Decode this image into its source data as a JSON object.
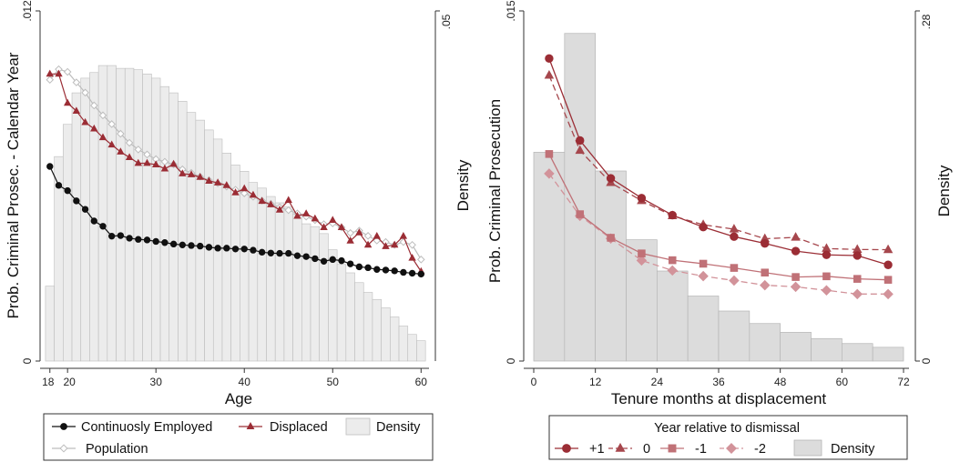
{
  "colors": {
    "black": "#111111",
    "displaced": "#9b2d35",
    "population": "#bdbdbd",
    "density_fill": "#ececec",
    "density_stroke": "#bdbdbd",
    "plus1": "#9b2d35",
    "zero": "#a6474d",
    "minus1": "#c07177",
    "minus2": "#d2939a",
    "density2_fill": "#dcdcdc",
    "density2_stroke": "#b5b5b5"
  },
  "chart_data": [
    {
      "type": "line",
      "xlabel": "Age",
      "ylabel": "Prob. Criminal Prosec. - Calendar Year",
      "y2label": "Density",
      "xlim": [
        17.2,
        61
      ],
      "ylim": [
        0,
        0.012
      ],
      "y2lim": [
        0,
        0.05
      ],
      "x_ticks": [
        "18",
        "20",
        "30",
        "40",
        "50",
        "60"
      ],
      "y_ticks": [
        "0",
        ".012"
      ],
      "y2_ticks": [
        ".05"
      ],
      "legend_position": "bottom",
      "x": [
        18,
        19,
        20,
        21,
        22,
        23,
        24,
        25,
        26,
        27,
        28,
        29,
        30,
        31,
        32,
        33,
        34,
        35,
        36,
        37,
        38,
        39,
        40,
        41,
        42,
        43,
        44,
        45,
        46,
        47,
        48,
        49,
        50,
        51,
        52,
        53,
        54,
        55,
        56,
        57,
        58,
        59,
        60
      ],
      "series": [
        {
          "name": "Continuosly Employed",
          "marker": "circle",
          "values": [
            0.00667,
            0.00602,
            0.00584,
            0.00549,
            0.0052,
            0.0048,
            0.00462,
            0.00428,
            0.0043,
            0.00421,
            0.00417,
            0.00415,
            0.0041,
            0.00406,
            0.00401,
            0.00398,
            0.00396,
            0.00394,
            0.0039,
            0.00387,
            0.00387,
            0.00384,
            0.00384,
            0.0038,
            0.00373,
            0.0037,
            0.00369,
            0.00369,
            0.00361,
            0.00358,
            0.00351,
            0.00342,
            0.00348,
            0.00344,
            0.00333,
            0.00323,
            0.0032,
            0.00314,
            0.00312,
            0.00309,
            0.00304,
            0.00301,
            0.00298
          ]
        },
        {
          "name": "Displaced",
          "marker": "triangle",
          "values": [
            0.00984,
            0.00984,
            0.00884,
            0.00857,
            0.00818,
            0.00796,
            0.00766,
            0.00741,
            0.00717,
            0.00698,
            0.00678,
            0.00678,
            0.00673,
            0.00659,
            0.00675,
            0.00642,
            0.00639,
            0.0063,
            0.00617,
            0.00611,
            0.00602,
            0.00577,
            0.00591,
            0.00569,
            0.00548,
            0.00536,
            0.00518,
            0.00551,
            0.00497,
            0.00505,
            0.00488,
            0.00458,
            0.00483,
            0.00458,
            0.00412,
            0.0044,
            0.00398,
            0.00428,
            0.00393,
            0.00398,
            0.00428,
            0.00353,
            0.00307
          ]
        },
        {
          "name": "Population",
          "marker": "diamond",
          "values": [
            0.00964,
            0.01,
            0.00991,
            0.00955,
            0.0092,
            0.00876,
            0.00842,
            0.00812,
            0.00779,
            0.00748,
            0.00725,
            0.00708,
            0.00692,
            0.00683,
            0.00674,
            0.00657,
            0.00645,
            0.00632,
            0.0062,
            0.00609,
            0.00598,
            0.00587,
            0.00575,
            0.00563,
            0.0055,
            0.00539,
            0.00527,
            0.00517,
            0.00506,
            0.00495,
            0.00483,
            0.00469,
            0.00472,
            0.00458,
            0.00439,
            0.00447,
            0.00429,
            0.00413,
            0.00408,
            0.00398,
            0.00408,
            0.00398,
            0.00348
          ]
        }
      ],
      "density": {
        "name": "Density",
        "values": [
          0.0107,
          0.0292,
          0.0338,
          0.0383,
          0.0404,
          0.0412,
          0.0422,
          0.0422,
          0.0418,
          0.0418,
          0.0416,
          0.041,
          0.0404,
          0.0392,
          0.0383,
          0.0371,
          0.0355,
          0.0344,
          0.033,
          0.0317,
          0.0297,
          0.028,
          0.0271,
          0.0255,
          0.0247,
          0.0235,
          0.0226,
          0.022,
          0.021,
          0.0196,
          0.0192,
          0.0182,
          0.0159,
          0.0138,
          0.0126,
          0.0112,
          0.0098,
          0.0088,
          0.0076,
          0.0063,
          0.005,
          0.0038,
          0.0029
        ]
      }
    },
    {
      "type": "line",
      "xlabel": "Tenure months at displacement",
      "ylabel": "Prob. Criminal Prosecution",
      "y2label": "Density",
      "xlim": [
        -3,
        73
      ],
      "ylim": [
        0,
        0.015
      ],
      "y2lim": [
        0,
        0.28
      ],
      "x_ticks": [
        "0",
        "12",
        "24",
        "36",
        "48",
        "60",
        "72"
      ],
      "y_ticks": [
        "0",
        ".015"
      ],
      "y2_ticks": [
        "0",
        ".28"
      ],
      "legend_title": "Year relative to dismissal",
      "legend_position": "bottom",
      "x": [
        3,
        9,
        15,
        21,
        27,
        33,
        39,
        45,
        51,
        57,
        63,
        69
      ],
      "series": [
        {
          "name": "+1",
          "marker": "circle",
          "dash": "solid",
          "values": [
            0.01296,
            0.00945,
            0.00783,
            0.00698,
            0.00625,
            0.00574,
            0.00533,
            0.00504,
            0.00471,
            0.00455,
            0.00452,
            0.00412
          ]
        },
        {
          "name": "0",
          "marker": "triangle",
          "dash": "dashed",
          "values": [
            0.01224,
            0.00902,
            0.00764,
            0.00687,
            0.00622,
            0.00584,
            0.00565,
            0.00524,
            0.0053,
            0.00482,
            0.00478,
            0.00477
          ]
        },
        {
          "name": "-1",
          "marker": "square",
          "dash": "solid",
          "values": [
            0.00887,
            0.00629,
            0.00528,
            0.00461,
            0.00432,
            0.00417,
            0.00399,
            0.00379,
            0.0036,
            0.00363,
            0.00352,
            0.00348
          ]
        },
        {
          "name": "-2",
          "marker": "diamond",
          "dash": "dashed",
          "values": [
            0.00803,
            0.00622,
            0.00525,
            0.00431,
            0.00388,
            0.00364,
            0.00345,
            0.00325,
            0.00318,
            0.00303,
            0.00287,
            0.00287
          ]
        }
      ],
      "density": {
        "name": "Density",
        "bins": [
          0,
          6,
          12,
          18,
          24,
          30,
          36,
          42,
          48,
          54,
          60,
          66,
          72
        ],
        "values": [
          0.167,
          0.262,
          0.152,
          0.097,
          0.072,
          0.052,
          0.04,
          0.03,
          0.023,
          0.018,
          0.014,
          0.011
        ]
      }
    }
  ]
}
